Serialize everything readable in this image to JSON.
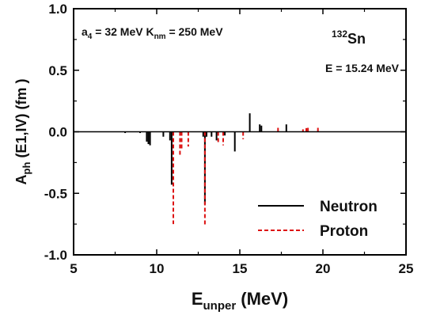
{
  "chart_data": {
    "type": "bar",
    "xlabel": {
      "main": "E",
      "sub": "unper",
      "tail": " (MeV)"
    },
    "ylabel": {
      "main": "A",
      "sub": "ph",
      "tail": " (E1,IV) (fm )"
    },
    "xlim": [
      5,
      25
    ],
    "ylim": [
      -1.0,
      1.0
    ],
    "xticks": [
      5,
      10,
      15,
      20,
      25
    ],
    "yticks": [
      -1.0,
      -0.5,
      0.0,
      0.5,
      1.0
    ],
    "ytick_labels": [
      "-1.0",
      "-0.5",
      "0.0",
      "0.5",
      "1.0"
    ],
    "grid": false,
    "legend_position": "bottom-right",
    "annotations": {
      "params": {
        "a": "a",
        "a_sub": "4",
        "mid": " = 32 MeV K",
        "k_sub": "nm",
        "tail": " = 250 MeV"
      },
      "nucleus": {
        "mass": "132",
        "symbol": "Sn"
      },
      "energy": "E = 15.24 MeV"
    },
    "series": [
      {
        "name": "Neutron",
        "color": "#000000",
        "dash": "solid",
        "x": [
          8.1,
          9.0,
          9.4,
          9.5,
          9.6,
          10.4,
          10.8,
          10.9,
          12.8,
          12.9,
          13.0,
          13.3,
          13.6,
          14.1,
          14.7,
          15.6,
          16.2,
          16.3,
          17.8
        ],
        "values": [
          -0.01,
          -0.01,
          -0.08,
          -0.1,
          -0.11,
          -0.04,
          -0.07,
          -0.43,
          -0.04,
          -0.59,
          -0.04,
          -0.04,
          -0.07,
          -0.03,
          -0.16,
          0.15,
          0.06,
          0.05,
          0.06
        ]
      },
      {
        "name": "Proton",
        "color": "#dd1111",
        "dash": "dashed",
        "x": [
          11.0,
          11.4,
          11.5,
          11.9,
          12.9,
          13.7,
          14.0,
          15.2,
          17.3,
          18.8,
          19.0,
          19.1,
          19.7
        ],
        "values": [
          -0.75,
          -0.2,
          -0.14,
          -0.12,
          -0.76,
          -0.1,
          -0.11,
          -0.06,
          0.05,
          0.02,
          0.03,
          0.05,
          0.04
        ]
      }
    ]
  }
}
